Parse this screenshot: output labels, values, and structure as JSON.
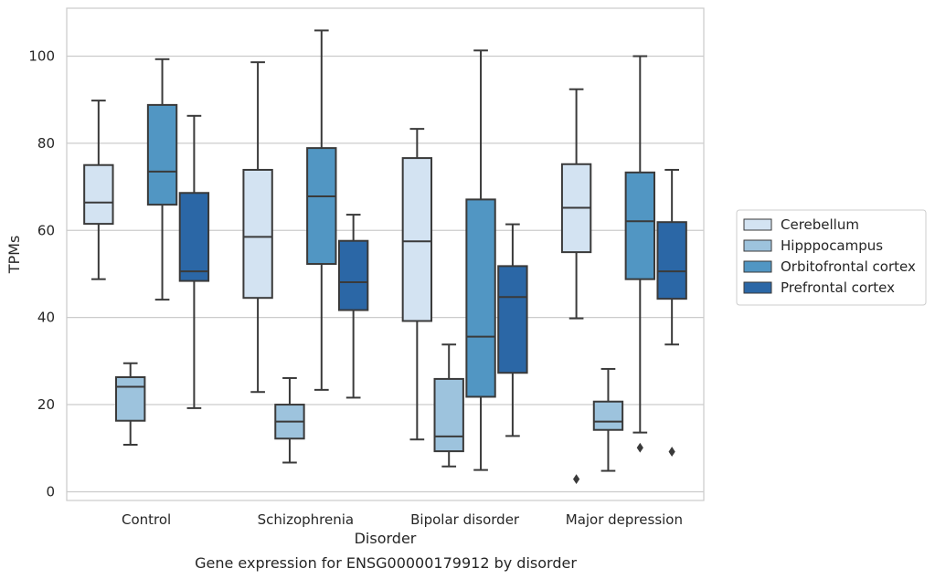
{
  "chart_data": {
    "type": "box",
    "caption": "Gene expression for ENSG00000179912 by disorder",
    "xlabel": "Disorder",
    "ylabel": "TPMs",
    "ylim": [
      -2,
      111
    ],
    "yticks": [
      0,
      20,
      40,
      60,
      80,
      100
    ],
    "grid": "horizontal",
    "legend_position": "right",
    "categories": [
      "Control",
      "Schizophrenia",
      "Bipolar disorder",
      "Major depression"
    ],
    "series": [
      {
        "name": "Cerebellum",
        "color": "#d3e3f2",
        "boxes": [
          {
            "whislo": 48.8,
            "q1": 61.5,
            "med": 66.4,
            "q3": 75.0,
            "whishi": 89.8,
            "fliers": []
          },
          {
            "whislo": 22.9,
            "q1": 44.5,
            "med": 58.5,
            "q3": 73.9,
            "whishi": 98.6,
            "fliers": []
          },
          {
            "whislo": 12.0,
            "q1": 39.2,
            "med": 57.5,
            "q3": 76.6,
            "whishi": 83.3,
            "fliers": []
          },
          {
            "whislo": 39.8,
            "q1": 55.0,
            "med": 65.2,
            "q3": 75.2,
            "whishi": 92.4,
            "fliers": [
              2.9
            ]
          }
        ]
      },
      {
        "name": "Hipppocampus",
        "color": "#9dc3dd",
        "boxes": [
          {
            "whislo": 10.8,
            "q1": 16.3,
            "med": 24.1,
            "q3": 26.3,
            "whishi": 29.5,
            "fliers": []
          },
          {
            "whislo": 6.7,
            "q1": 12.2,
            "med": 16.1,
            "q3": 20.0,
            "whishi": 26.1,
            "fliers": []
          },
          {
            "whislo": 5.8,
            "q1": 9.3,
            "med": 12.7,
            "q3": 25.9,
            "whishi": 33.8,
            "fliers": []
          },
          {
            "whislo": 4.8,
            "q1": 14.2,
            "med": 16.1,
            "q3": 20.7,
            "whishi": 28.2,
            "fliers": []
          }
        ]
      },
      {
        "name": "Orbitofrontal cortex",
        "color": "#5196c3",
        "boxes": [
          {
            "whislo": 44.1,
            "q1": 65.9,
            "med": 73.5,
            "q3": 88.8,
            "whishi": 99.3,
            "fliers": []
          },
          {
            "whislo": 23.4,
            "q1": 52.3,
            "med": 67.8,
            "q3": 78.9,
            "whishi": 105.9,
            "fliers": []
          },
          {
            "whislo": 5.0,
            "q1": 21.8,
            "med": 35.6,
            "q3": 67.1,
            "whishi": 101.3,
            "fliers": []
          },
          {
            "whislo": 13.6,
            "q1": 48.8,
            "med": 62.1,
            "q3": 73.3,
            "whishi": 100.0,
            "fliers": [
              10.1
            ]
          }
        ]
      },
      {
        "name": "Prefrontal cortex",
        "color": "#2b67a6",
        "boxes": [
          {
            "whislo": 19.2,
            "q1": 48.4,
            "med": 50.6,
            "q3": 68.6,
            "whishi": 86.3,
            "fliers": []
          },
          {
            "whislo": 21.6,
            "q1": 41.7,
            "med": 48.1,
            "q3": 57.6,
            "whishi": 63.6,
            "fliers": []
          },
          {
            "whislo": 12.8,
            "q1": 27.3,
            "med": 44.7,
            "q3": 51.8,
            "whishi": 61.4,
            "fliers": []
          },
          {
            "whislo": 33.8,
            "q1": 44.3,
            "med": 50.6,
            "q3": 61.9,
            "whishi": 73.9,
            "fliers": [
              9.2
            ]
          }
        ]
      }
    ]
  }
}
